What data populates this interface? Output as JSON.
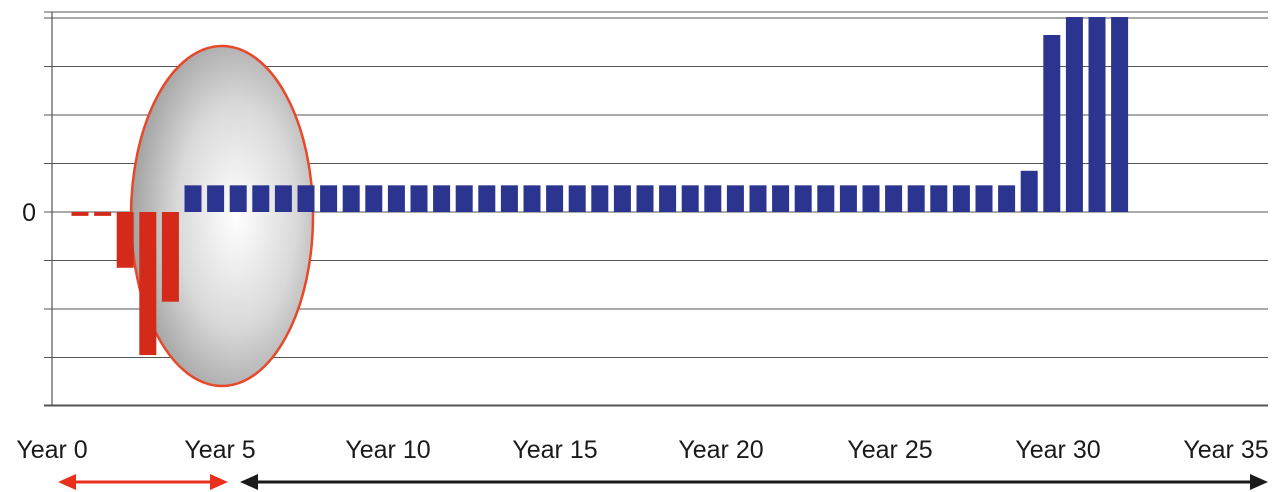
{
  "chart_data": {
    "type": "bar",
    "title": "",
    "xlabel": "",
    "ylabel": "",
    "x_tick_labels": [
      "Year 0",
      "Year 5",
      "Year 10",
      "Year 15",
      "Year 20",
      "Year 25",
      "Year 30",
      "Year 35"
    ],
    "x_tick_years": [
      0,
      5,
      10,
      15,
      20,
      25,
      30,
      35
    ],
    "y_tick_labels": [
      "0"
    ],
    "y_tick_values": [
      0
    ],
    "ylim": [
      -4.1,
      4.15
    ],
    "grid": true,
    "series": [
      {
        "values": [
          -0.08,
          -0.08,
          -1.15,
          -2.95,
          -1.85,
          0.55,
          0.55,
          0.55,
          0.55,
          0.55,
          0.55,
          0.55,
          0.55,
          0.55,
          0.55,
          0.55,
          0.55,
          0.55,
          0.55,
          0.55,
          0.55,
          0.55,
          0.55,
          0.55,
          0.55,
          0.55,
          0.55,
          0.55,
          0.55,
          0.55,
          0.55,
          0.55,
          0.55,
          0.55,
          0.55,
          0.55,
          0.55,
          0.55,
          0.55,
          0.55,
          0.55,
          0.55,
          0.85,
          3.65,
          4.02,
          4.02,
          4.02
        ]
      }
    ],
    "colors": {
      "negative": "#d42a1a",
      "positive": "#2b3590",
      "highlight_outline": "#e8482a",
      "arrow_red": "#e8301c",
      "arrow_black": "#1a1a1a",
      "grid": "#555555"
    }
  }
}
